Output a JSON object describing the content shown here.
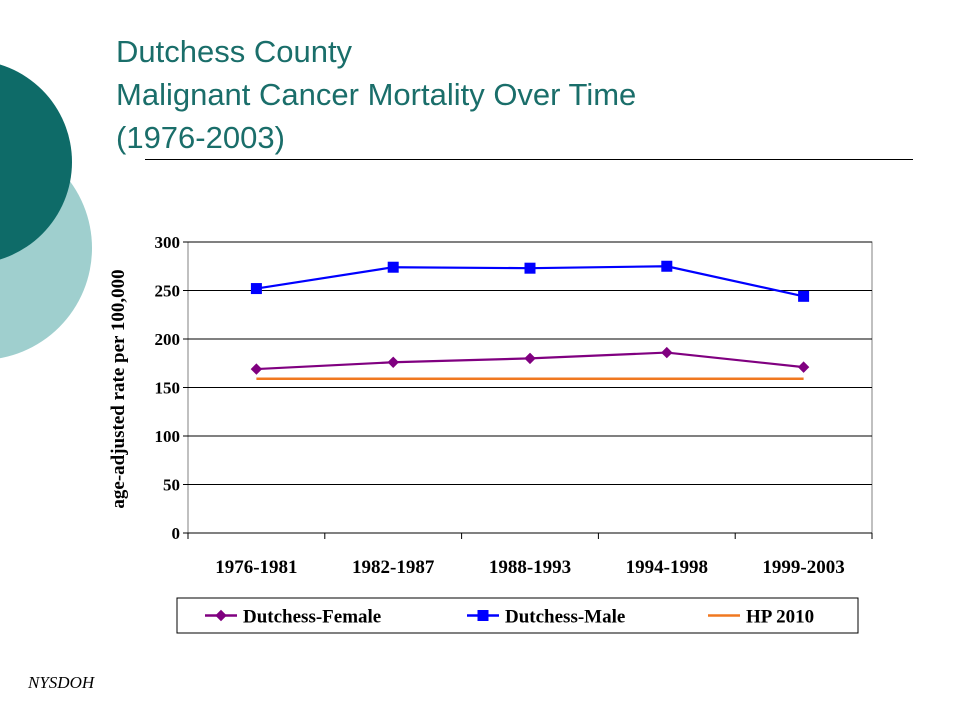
{
  "slide": {
    "title_lines": [
      "Dutchess County",
      "Malignant Cancer Mortality Over Time",
      "(1976-2003)"
    ],
    "footer": "NYSDOH",
    "colors": {
      "title": "#1a6e6a",
      "deco_dark": "#0e6b68",
      "deco_light": "#9fcfce"
    }
  },
  "chart_data": {
    "type": "line",
    "title": "",
    "xlabel": "",
    "ylabel": "age-adjusted rate per 100,000",
    "categories": [
      "1976-1981",
      "1982-1987",
      "1988-1993",
      "1994-1998",
      "1999-2003"
    ],
    "ylim": [
      0,
      300
    ],
    "yticks": [
      0,
      50,
      100,
      150,
      200,
      250,
      300
    ],
    "grid": true,
    "legend_position": "bottom",
    "series": [
      {
        "name": "Dutchess-Female",
        "values": [
          169,
          176,
          180,
          186,
          171
        ],
        "color": "#800080",
        "marker": "diamond"
      },
      {
        "name": "Dutchess-Male",
        "values": [
          252,
          274,
          273,
          275,
          244
        ],
        "color": "#0000ff",
        "marker": "square"
      },
      {
        "name": "HP 2010",
        "values": [
          159,
          159,
          159,
          159,
          159
        ],
        "color": "#f07820",
        "marker": "none"
      }
    ]
  }
}
